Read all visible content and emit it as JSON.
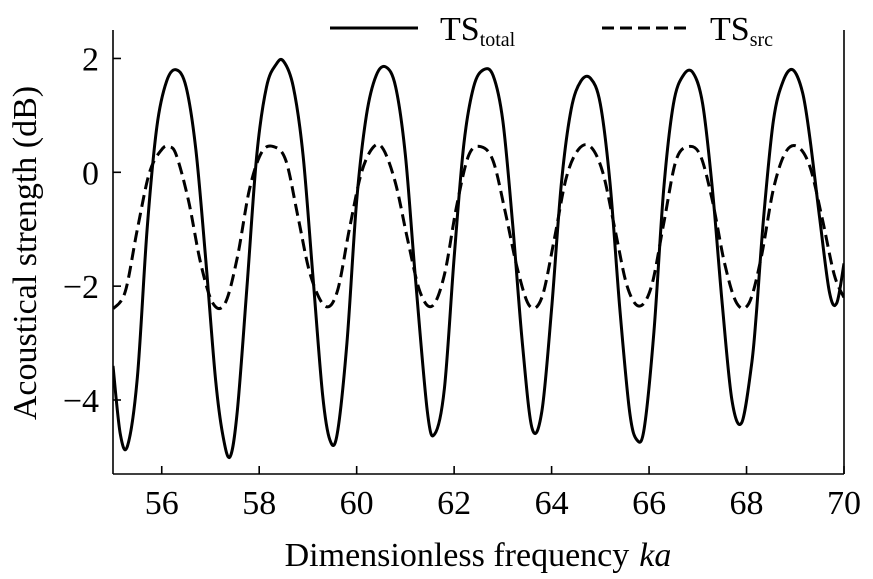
{
  "chart_data": {
    "type": "line",
    "title": "",
    "xlabel": "Dimensionless frequency",
    "xlabel_var": "ka",
    "ylabel": "Acoustical strength (dB)",
    "xlim": [
      55,
      70
    ],
    "ylim": [
      -5.3,
      2.5
    ],
    "xticks": [
      56,
      58,
      60,
      62,
      64,
      66,
      68,
      70
    ],
    "yticks": [
      2,
      0,
      -2,
      -4
    ],
    "ytick_labels": [
      "2",
      "0",
      "−2",
      "−4"
    ],
    "grid": false,
    "legend_position": "top",
    "series": [
      {
        "name": "TS",
        "name_sub": "total",
        "style": "solid",
        "color": "#000000",
        "x": [
          55.0,
          55.15,
          55.3,
          55.5,
          55.7,
          55.9,
          56.1,
          56.3,
          56.5,
          56.7,
          56.9,
          57.1,
          57.25,
          57.4,
          57.55,
          57.75,
          57.95,
          58.15,
          58.35,
          58.5,
          58.7,
          58.9,
          59.1,
          59.3,
          59.45,
          59.6,
          59.8,
          60.0,
          60.2,
          60.4,
          60.6,
          60.8,
          61.0,
          61.2,
          61.45,
          61.6,
          61.8,
          62.0,
          62.2,
          62.4,
          62.6,
          62.8,
          63.0,
          63.2,
          63.4,
          63.6,
          63.8,
          64.0,
          64.2,
          64.4,
          64.6,
          64.8,
          65.0,
          65.2,
          65.4,
          65.6,
          65.75,
          65.9,
          66.1,
          66.3,
          66.5,
          66.7,
          66.9,
          67.1,
          67.3,
          67.5,
          67.7,
          67.9,
          68.1,
          68.2,
          68.35,
          68.55,
          68.75,
          68.95,
          69.15,
          69.3,
          69.5,
          69.7,
          69.85,
          70.0
        ],
        "y": [
          -3.4,
          -4.6,
          -4.8,
          -3.6,
          -1.0,
          0.8,
          1.6,
          1.8,
          1.5,
          0.4,
          -1.5,
          -3.6,
          -4.6,
          -5.0,
          -4.2,
          -2.0,
          0.3,
          1.5,
          1.9,
          1.95,
          1.5,
          0.3,
          -1.8,
          -3.9,
          -4.7,
          -4.6,
          -3.0,
          -0.5,
          1.0,
          1.7,
          1.85,
          1.5,
          0.3,
          -1.8,
          -4.2,
          -4.6,
          -3.8,
          -1.5,
          0.5,
          1.5,
          1.8,
          1.7,
          0.9,
          -0.9,
          -3.0,
          -4.5,
          -4.2,
          -2.4,
          -0.2,
          1.1,
          1.6,
          1.65,
          1.2,
          -0.2,
          -2.4,
          -4.2,
          -4.7,
          -4.5,
          -2.8,
          -0.3,
          1.2,
          1.7,
          1.75,
          1.2,
          -0.3,
          -2.3,
          -4.0,
          -4.4,
          -3.4,
          -2.5,
          -0.8,
          0.9,
          1.6,
          1.8,
          1.4,
          0.6,
          -0.8,
          -2.1,
          -2.3,
          -1.6
        ]
      },
      {
        "name": "TS",
        "name_sub": "src",
        "style": "dashed",
        "color": "#000000",
        "x": [
          55.0,
          55.25,
          55.5,
          55.75,
          56.0,
          56.15,
          56.3,
          56.55,
          56.8,
          57.05,
          57.3,
          57.55,
          57.8,
          58.05,
          58.3,
          58.55,
          58.8,
          59.05,
          59.35,
          59.6,
          59.85,
          60.1,
          60.35,
          60.55,
          60.8,
          61.05,
          61.3,
          61.55,
          61.8,
          62.05,
          62.3,
          62.55,
          62.8,
          63.05,
          63.3,
          63.55,
          63.8,
          64.05,
          64.3,
          64.55,
          64.8,
          65.05,
          65.3,
          65.55,
          65.8,
          66.05,
          66.3,
          66.55,
          66.8,
          67.05,
          67.3,
          67.55,
          67.8,
          68.05,
          68.3,
          68.55,
          68.8,
          69.05,
          69.3,
          69.55,
          69.8,
          70.0
        ],
        "y": [
          -2.4,
          -2.1,
          -1.0,
          0.0,
          0.4,
          0.45,
          0.3,
          -0.5,
          -1.6,
          -2.3,
          -2.3,
          -1.5,
          -0.3,
          0.35,
          0.45,
          0.2,
          -0.8,
          -1.8,
          -2.35,
          -2.1,
          -1.0,
          0.0,
          0.45,
          0.4,
          -0.2,
          -1.2,
          -2.1,
          -2.35,
          -1.8,
          -0.6,
          0.3,
          0.45,
          0.2,
          -0.7,
          -1.7,
          -2.35,
          -2.2,
          -1.2,
          -0.1,
          0.4,
          0.45,
          0.0,
          -1.0,
          -2.0,
          -2.35,
          -2.0,
          -0.9,
          0.2,
          0.45,
          0.3,
          -0.5,
          -1.6,
          -2.3,
          -2.3,
          -1.5,
          -0.3,
          0.35,
          0.45,
          0.1,
          -0.8,
          -1.8,
          -2.2
        ]
      }
    ]
  }
}
